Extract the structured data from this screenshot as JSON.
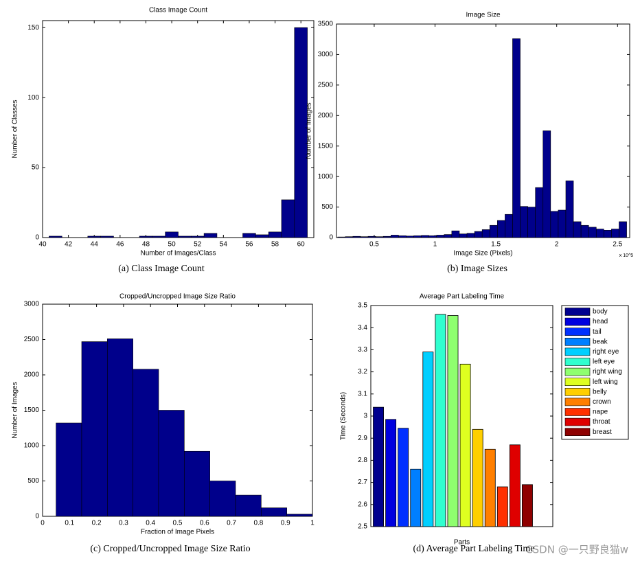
{
  "chart_data": [
    {
      "type": "histogram",
      "title": "Class Image Count",
      "x_label": "Number of Images/Class",
      "y_label": "Number of Classes",
      "caption": "(a)  Class Image Count",
      "color": "#00008b",
      "bins": [
        40.5,
        41.5,
        42.5,
        43.5,
        44.5,
        45.5,
        46.5,
        47.5,
        48.5,
        49.5,
        50.5,
        51.5,
        52.5,
        53.5,
        54.5,
        55.5,
        56.5,
        57.5,
        58.5,
        59.5,
        60.5
      ],
      "counts": [
        1,
        0,
        0,
        1,
        1,
        0,
        0,
        1,
        1,
        4,
        1,
        1,
        3,
        0,
        0,
        3,
        2,
        4,
        27,
        150
      ],
      "xlim": [
        40,
        61
      ],
      "xticks": [
        40,
        42,
        44,
        46,
        48,
        50,
        52,
        54,
        56,
        58,
        60
      ],
      "ylim": [
        0,
        155
      ],
      "yticks": [
        0,
        50,
        100,
        150
      ]
    },
    {
      "type": "histogram",
      "title": "Image Size",
      "x_label": "Image Size (Pixels)",
      "y_label": "Number of Images",
      "caption": "(b)  Image Sizes",
      "x_multiplier": "x 10^5",
      "color": "#00008b",
      "bins": [
        20000,
        26250,
        32500,
        38750,
        45000,
        51250,
        57500,
        63750,
        70000,
        76250,
        82500,
        88750,
        95000,
        101250,
        107500,
        113750,
        120000,
        126250,
        132500,
        138750,
        145000,
        151250,
        157500,
        163750,
        170000,
        176250,
        182500,
        188750,
        195000,
        201250,
        207500,
        213750,
        220000,
        226250,
        232500,
        238750,
        245000,
        251250,
        257500
      ],
      "counts": [
        10,
        15,
        20,
        15,
        20,
        15,
        20,
        40,
        30,
        25,
        30,
        35,
        30,
        40,
        50,
        110,
        60,
        70,
        100,
        130,
        200,
        280,
        380,
        3260,
        510,
        500,
        820,
        1750,
        430,
        450,
        930,
        260,
        200,
        170,
        140,
        120,
        140,
        260
      ],
      "xlim": [
        19000,
        260000
      ],
      "xticks": [
        {
          "value": 50000,
          "label": "0.5"
        },
        {
          "value": 100000,
          "label": "1"
        },
        {
          "value": 150000,
          "label": "1.5"
        },
        {
          "value": 200000,
          "label": "2"
        },
        {
          "value": 250000,
          "label": "2.5"
        }
      ],
      "ylim": [
        0,
        3500
      ],
      "yticks": [
        0,
        500,
        1000,
        1500,
        2000,
        2500,
        3000,
        3500
      ]
    },
    {
      "type": "histogram",
      "title": "Cropped/Uncropped Image Size Ratio",
      "x_label": "Fraction of Image Pixels",
      "y_label": "Number of Images",
      "caption": "(c)  Cropped/Uncropped Image Size Ratio",
      "color": "#00008b",
      "bins": [
        0.05,
        0.145,
        0.24,
        0.335,
        0.43,
        0.525,
        0.62,
        0.715,
        0.81,
        0.905,
        1.0
      ],
      "counts": [
        1320,
        2470,
        2510,
        2080,
        1500,
        920,
        500,
        300,
        120,
        30
      ],
      "xlim": [
        0,
        1
      ],
      "xticks": [
        0,
        0.1,
        0.2,
        0.3,
        0.4,
        0.5,
        0.6,
        0.7,
        0.8,
        0.9,
        1
      ],
      "ylim": [
        0,
        3000
      ],
      "yticks": [
        0,
        500,
        1000,
        1500,
        2000,
        2500,
        3000
      ]
    },
    {
      "type": "bar",
      "title": "Average Part Labeling Time",
      "x_label": "Parts",
      "y_label": "Time (Seconds)",
      "caption": "(d)  Average Part Labeling Time",
      "categories": [
        "body",
        "head",
        "tail",
        "beak",
        "right eye",
        "left eye",
        "right wing",
        "left wing",
        "belly",
        "crown",
        "nape",
        "throat",
        "breast"
      ],
      "values": [
        3.04,
        2.985,
        2.945,
        2.76,
        3.29,
        3.46,
        3.455,
        3.235,
        2.94,
        2.85,
        2.68,
        2.87,
        2.69
      ],
      "colors": [
        "#00008f",
        "#0000df",
        "#0030ff",
        "#007fff",
        "#00cfff",
        "#30ffcf",
        "#8fff6f",
        "#dfff20",
        "#ffcf00",
        "#ff7f00",
        "#ff3000",
        "#df0000",
        "#8f0000"
      ],
      "ylim": [
        2.5,
        3.5
      ],
      "yticks": [
        2.5,
        2.6,
        2.7,
        2.8,
        2.9,
        3,
        3.1,
        3.2,
        3.3,
        3.4,
        3.5
      ],
      "legend": "outside-right"
    }
  ],
  "watermark": "CSDN @一只野良猫w"
}
